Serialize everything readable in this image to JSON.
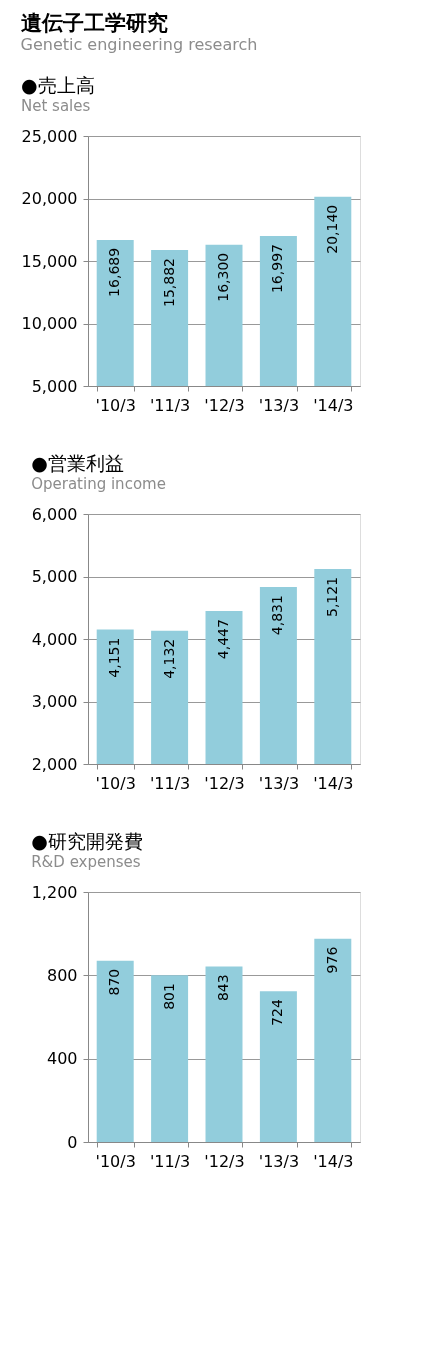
{
  "chart_data": [
    {
      "type": "other",
      "title": "遺伝子工学研究",
      "subtitle": "Genetic engineering research"
    },
    {
      "type": "bar",
      "title": "●売上高",
      "subtitle": "Net sales",
      "categories": [
        "'10/3",
        "'11/3",
        "'12/3",
        "'13/3",
        "'14/3"
      ],
      "values": [
        16689,
        15882,
        16300,
        16997,
        20140
      ],
      "value_labels": [
        "16,689",
        "15,882",
        "16,300",
        "16,997",
        "20,140"
      ],
      "color": "#92cddc",
      "ylim": [
        5000,
        25000
      ],
      "yticks": [
        {
          "value": 5000,
          "label": "5,000"
        },
        {
          "value": 10000,
          "label": "10,000"
        },
        {
          "value": 15000,
          "label": "15,000"
        },
        {
          "value": 20000,
          "label": "20,000"
        },
        {
          "value": 25000,
          "label": "25,000"
        }
      ],
      "grid": "y"
    },
    {
      "type": "bar",
      "title": "●営業利益",
      "subtitle": "Operating income",
      "categories": [
        "'10/3",
        "'11/3",
        "'12/3",
        "'13/3",
        "'14/3"
      ],
      "values": [
        4151,
        4132,
        4447,
        4831,
        5121
      ],
      "value_labels": [
        "4,151",
        "4,132",
        "4,447",
        "4,831",
        "5,121"
      ],
      "color": "#92cddc",
      "ylim": [
        2000,
        6000
      ],
      "yticks": [
        {
          "value": 2000,
          "label": "2,000"
        },
        {
          "value": 3000,
          "label": "3,000"
        },
        {
          "value": 4000,
          "label": "4,000"
        },
        {
          "value": 5000,
          "label": "5,000"
        },
        {
          "value": 6000,
          "label": "6,000"
        }
      ],
      "grid": "y"
    },
    {
      "type": "bar",
      "title": "●研究開発費",
      "subtitle": "R&D expenses",
      "categories": [
        "'10/3",
        "'11/3",
        "'12/3",
        "'13/3",
        "'14/3"
      ],
      "values": [
        870,
        801,
        843,
        724,
        976
      ],
      "color": "#92cddc",
      "ylim": [
        0,
        1200
      ],
      "yticks": [
        0,
        400,
        800,
        {
          "value": 1200,
          "label": "1,200"
        }
      ],
      "grid": "y",
      "data_labels": true
    }
  ]
}
